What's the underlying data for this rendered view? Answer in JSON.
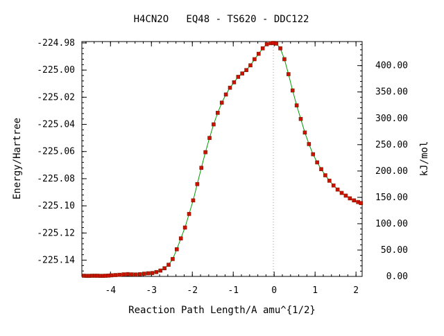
{
  "chart_data": {
    "type": "scatter",
    "title": "H4CN2O   EQ48 - TS620 - DDC122",
    "xlabel": "Reaction Path Length/A amu^{1/2}",
    "ylabel": "Energy/Hartree",
    "y2label": "kJ/mol",
    "xlim": [
      -4.7,
      2.15
    ],
    "ylim": [
      -225.152,
      -224.979
    ],
    "y2lim": [
      0.0,
      445.6
    ],
    "x_ticks": [
      -4,
      -3,
      -2,
      -1,
      0,
      1,
      2
    ],
    "y_ticks": [
      -224.98,
      -225.0,
      -225.02,
      -225.04,
      -225.06,
      -225.08,
      -225.1,
      -225.12,
      -225.14
    ],
    "y_tick_labels": [
      "-224.98",
      "-225.00",
      "-225.02",
      "-225.04",
      "-225.06",
      "-225.08",
      "-225.10",
      "-225.12",
      "-225.14"
    ],
    "y2_ticks": [
      0,
      50,
      100,
      150,
      200,
      250,
      300,
      350,
      400
    ],
    "y2_tick_labels": [
      "0.00",
      "50.00",
      "100.00",
      "150.00",
      "200.00",
      "250.00",
      "300.00",
      "350.00",
      "400.00"
    ],
    "ts_marker_x": -0.02,
    "grid": false,
    "legend": false,
    "colors": {
      "line": "#009900",
      "point": "#cc1100",
      "point_edge": "#7a1a00",
      "ts_line": "#999999"
    },
    "series": [
      {
        "x": [
          -4.65,
          -4.58,
          -4.52,
          -4.45,
          -4.38,
          -4.32,
          -4.25,
          -4.18,
          -4.12,
          -4.05,
          -3.98,
          -3.88,
          -3.78,
          -3.68,
          -3.58,
          -3.48,
          -3.38,
          -3.28,
          -3.18,
          -3.08,
          -2.98,
          -2.88,
          -2.78,
          -2.68,
          -2.58,
          -2.48,
          -2.38,
          -2.28,
          -2.18,
          -2.08,
          -1.98,
          -1.88,
          -1.78,
          -1.68,
          -1.58,
          -1.48,
          -1.38,
          -1.28,
          -1.18,
          -1.08,
          -0.98,
          -0.88,
          -0.78,
          -0.68,
          -0.58,
          -0.48,
          -0.38,
          -0.28,
          -0.18,
          -0.08,
          -0.02,
          0.05,
          0.15,
          0.25,
          0.35,
          0.45,
          0.55,
          0.65,
          0.75,
          0.85,
          0.95,
          1.05,
          1.15,
          1.25,
          1.35,
          1.45,
          1.55,
          1.65,
          1.75,
          1.85,
          1.95,
          2.05,
          2.12
        ],
        "y": [
          -225.1515,
          -225.1516,
          -225.1516,
          -225.1515,
          -225.1515,
          -225.1515,
          -225.1516,
          -225.1516,
          -225.1515,
          -225.1514,
          -225.1512,
          -225.151,
          -225.1508,
          -225.1505,
          -225.1503,
          -225.1505,
          -225.1506,
          -225.1504,
          -225.15,
          -225.1497,
          -225.1495,
          -225.1488,
          -225.1477,
          -225.146,
          -225.1434,
          -225.1392,
          -225.132,
          -225.124,
          -225.116,
          -225.106,
          -225.096,
          -225.084,
          -225.072,
          -225.0605,
          -225.05,
          -225.04,
          -225.0315,
          -225.024,
          -225.018,
          -225.013,
          -225.009,
          -225.005,
          -225.0025,
          -225.0,
          -224.9965,
          -224.992,
          -224.988,
          -224.984,
          -224.981,
          -224.9802,
          -224.98,
          -224.9805,
          -224.984,
          -224.992,
          -225.003,
          -225.015,
          -225.026,
          -225.036,
          -225.046,
          -225.0545,
          -225.062,
          -225.068,
          -225.073,
          -225.0775,
          -225.0815,
          -225.085,
          -225.088,
          -225.0905,
          -225.0925,
          -225.0945,
          -225.096,
          -225.0972,
          -225.098
        ]
      }
    ]
  }
}
